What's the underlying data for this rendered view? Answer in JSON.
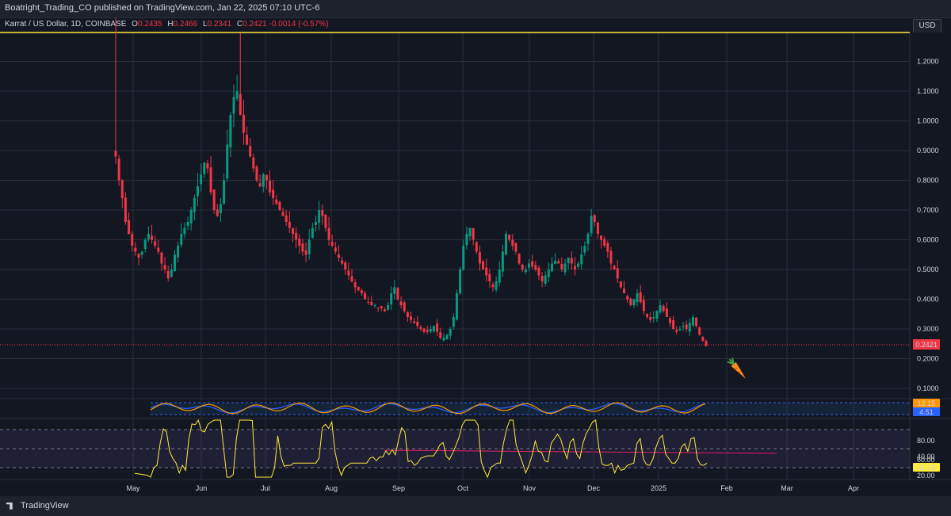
{
  "header": {
    "published_text": "Boatright_Trading_CO published on TradingView.com, Jan 22, 2025 07:10 UTC-6"
  },
  "legend": {
    "symbol": "Karrat / US Dollar, 1D, COINBASE",
    "open_label": "O",
    "open": "0.2435",
    "high_label": "H",
    "high": "0.2466",
    "low_label": "L",
    "low": "0.2341",
    "close_label": "C",
    "close": "0.2421",
    "change": "-0.0014 (-0.57%)"
  },
  "currency_button": "USD",
  "colors": {
    "up": "#089981",
    "down": "#f23645",
    "background": "#131722",
    "yellow": "#ffeb3b",
    "blue": "#2962ff",
    "orange": "#ff9800"
  },
  "price_axis": {
    "labels": [
      "1.2000",
      "1.1000",
      "1.0000",
      "0.9000",
      "0.8000",
      "0.7000",
      "0.6000",
      "0.5000",
      "0.4000",
      "0.3000",
      "0.2000",
      "0.1000"
    ],
    "last_price_badge": "0.2421"
  },
  "stoch_axis": {
    "badge_orange": "12.15",
    "badge_blue": "4.51"
  },
  "rsi_axis": {
    "labels": [
      "80.00",
      "60.00",
      "40.00",
      "20.00"
    ],
    "badge_value": "31.18"
  },
  "time_axis": {
    "labels": [
      "May",
      "Jun",
      "Jul",
      "Aug",
      "Sep",
      "Oct",
      "Nov",
      "Dec",
      "2025",
      "Feb",
      "Mar",
      "Apr"
    ]
  },
  "chart_data": {
    "type": "candlestick",
    "series": [
      {
        "name": "Karrat / US Dollar",
        "close": [
          0.88,
          0.8,
          0.74,
          0.66,
          0.62,
          0.58,
          0.56,
          0.54,
          0.56,
          0.6,
          0.62,
          0.6,
          0.58,
          0.56,
          0.52,
          0.5,
          0.47,
          0.5,
          0.55,
          0.58,
          0.62,
          0.64,
          0.66,
          0.7,
          0.74,
          0.78,
          0.82,
          0.86,
          0.84,
          0.76,
          0.7,
          0.68,
          0.72,
          0.8,
          0.92,
          1.02,
          1.08,
          1.1,
          1.02,
          0.96,
          0.92,
          0.88,
          0.84,
          0.8,
          0.78,
          0.82,
          0.8,
          0.76,
          0.74,
          0.72,
          0.7,
          0.68,
          0.66,
          0.64,
          0.62,
          0.6,
          0.58,
          0.56,
          0.55,
          0.6,
          0.64,
          0.66,
          0.7,
          0.68,
          0.64,
          0.6,
          0.58,
          0.56,
          0.54,
          0.52,
          0.5,
          0.48,
          0.46,
          0.44,
          0.43,
          0.42,
          0.4,
          0.39,
          0.38,
          0.38,
          0.37,
          0.37,
          0.36,
          0.38,
          0.42,
          0.44,
          0.4,
          0.38,
          0.36,
          0.34,
          0.33,
          0.32,
          0.31,
          0.3,
          0.29,
          0.29,
          0.3,
          0.31,
          0.29,
          0.27,
          0.27,
          0.28,
          0.3,
          0.34,
          0.42,
          0.5,
          0.58,
          0.62,
          0.64,
          0.6,
          0.56,
          0.52,
          0.5,
          0.48,
          0.46,
          0.44,
          0.46,
          0.5,
          0.56,
          0.62,
          0.6,
          0.58,
          0.56,
          0.52,
          0.5,
          0.5,
          0.52,
          0.51,
          0.5,
          0.48,
          0.46,
          0.48,
          0.5,
          0.52,
          0.53,
          0.52,
          0.5,
          0.52,
          0.54,
          0.52,
          0.5,
          0.52,
          0.55,
          0.58,
          0.62,
          0.68,
          0.66,
          0.62,
          0.6,
          0.58,
          0.56,
          0.52,
          0.5,
          0.47,
          0.44,
          0.42,
          0.4,
          0.38,
          0.4,
          0.42,
          0.39,
          0.36,
          0.34,
          0.33,
          0.34,
          0.36,
          0.38,
          0.36,
          0.34,
          0.32,
          0.3,
          0.29,
          0.3,
          0.31,
          0.3,
          0.32,
          0.34,
          0.31,
          0.28,
          0.26,
          0.2421
        ],
        "high_estimate": 1.32,
        "low_estimate": 0.2341
      }
    ],
    "title": "Karrat / US Dollar, 1D, COINBASE",
    "x_range": [
      "2024-04-25",
      "2025-04-20"
    ],
    "ylim": [
      0.02,
      1.3
    ],
    "rsi": {
      "levels": [
        70,
        50,
        30
      ],
      "series_name": "RSI",
      "last_value": 31.18
    },
    "stoch": {
      "last_orange": 12.15,
      "last_blue": 4.51
    },
    "grid": true,
    "legend_position": "top-left"
  }
}
